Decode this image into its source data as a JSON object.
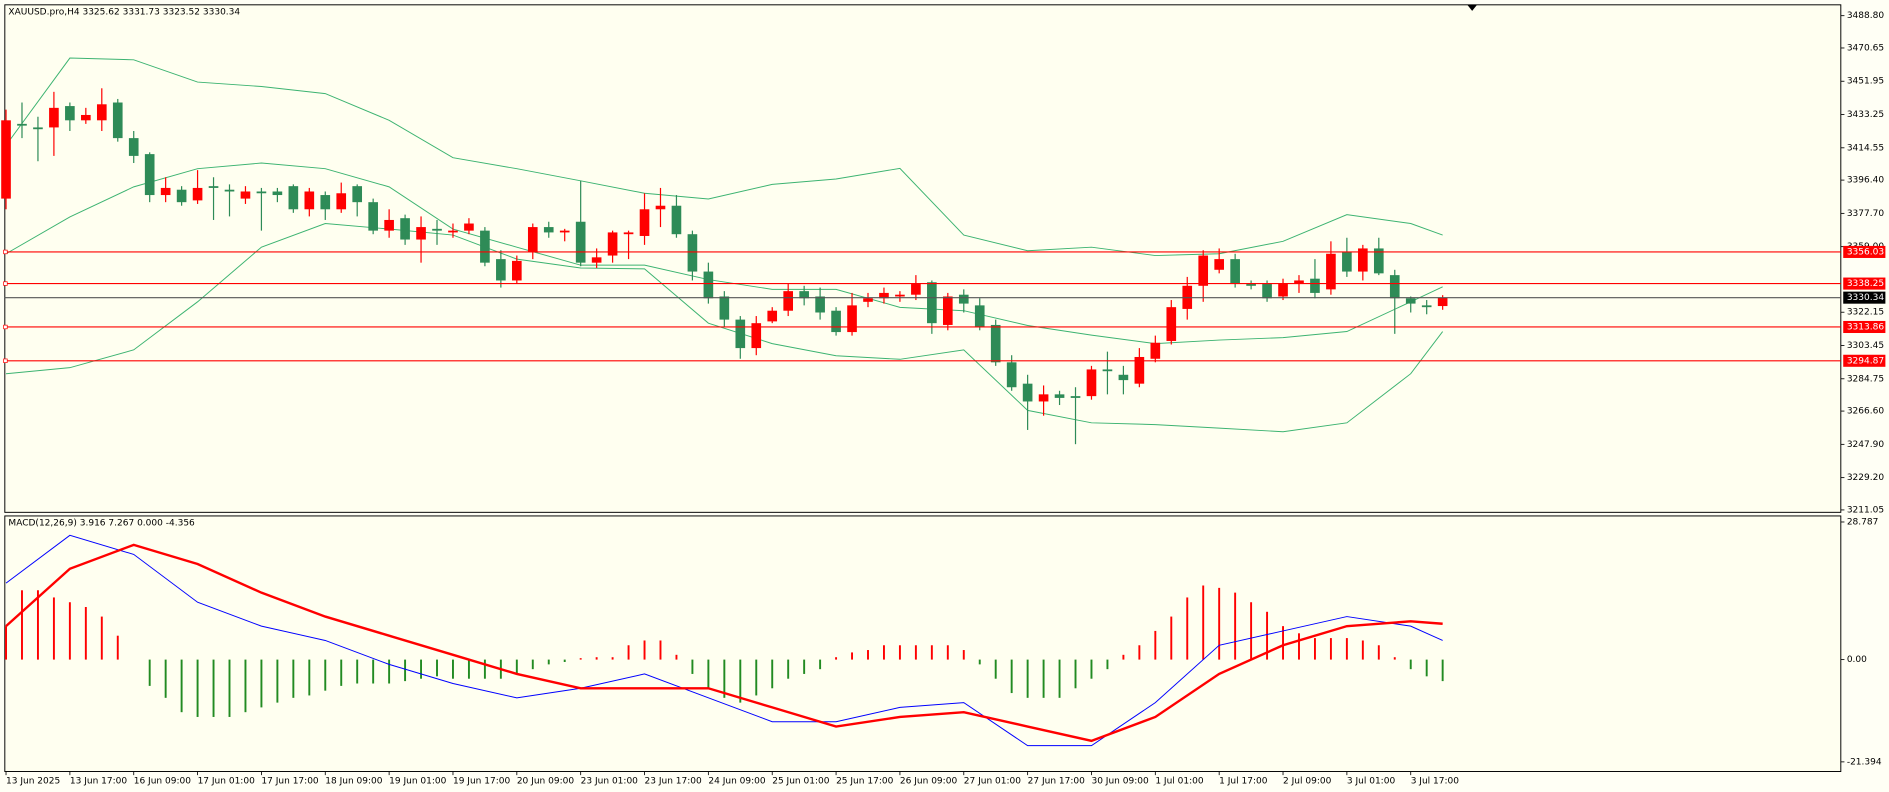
{
  "chart_data": [
    {
      "type": "candlestick",
      "title": "XAUUSD.pro,H4  3325.62 3331.73 3323.52 3330.34",
      "open": [
        3386,
        3428,
        3426,
        3426,
        3438,
        3430,
        3430,
        3440,
        3420,
        3411,
        3388,
        3391,
        3385,
        3393,
        3391,
        3386,
        3390,
        3390,
        3393,
        3380,
        3388,
        3380,
        3393,
        3384,
        3368,
        3375,
        3363,
        3369,
        3367,
        3368,
        3368,
        3352,
        3340,
        3356,
        3370,
        3367,
        3373,
        3350,
        3354,
        3366,
        3365,
        3380,
        3382,
        3366,
        3345,
        3331,
        3318,
        3302,
        3317,
        3323,
        3334,
        3331,
        3323,
        3311,
        3328,
        3330,
        3331,
        3332,
        3339,
        3315,
        3332,
        3326,
        3315,
        3294,
        3282,
        3272,
        3276,
        3275,
        3275,
        3290,
        3287,
        3282,
        3296,
        3306,
        3324,
        3337,
        3346,
        3352,
        3338,
        3338,
        3331,
        3338,
        3341,
        3335,
        3356,
        3345,
        3358,
        3343,
        3330,
        3326,
        3325.62
      ],
      "high": [
        3436,
        3440,
        3432,
        3446,
        3440,
        3437,
        3448,
        3442,
        3424,
        3412,
        3398,
        3393,
        3402,
        3398,
        3394,
        3393,
        3392,
        3392,
        3394,
        3392,
        3390,
        3395,
        3394,
        3386,
        3380,
        3377,
        3376,
        3374,
        3372,
        3375,
        3370,
        3357,
        3354,
        3372,
        3373,
        3369,
        3396,
        3358,
        3368,
        3368,
        3389,
        3392,
        3388,
        3368,
        3350,
        3334,
        3320,
        3320,
        3325,
        3338,
        3337,
        3336,
        3325,
        3333,
        3333,
        3336,
        3334,
        3343,
        3340,
        3333,
        3335,
        3330,
        3318,
        3298,
        3287,
        3281,
        3278,
        3280,
        3292,
        3300,
        3292,
        3302,
        3309,
        3329,
        3342,
        3357,
        3358,
        3355,
        3340,
        3340,
        3341,
        3343,
        3352,
        3362,
        3364,
        3360,
        3364,
        3346,
        3331,
        3329,
        3331.73
      ],
      "low": [
        3380,
        3420,
        3407,
        3410,
        3424,
        3428,
        3424,
        3418,
        3406,
        3384,
        3384,
        3382,
        3383,
        3374,
        3376,
        3383,
        3368,
        3384,
        3378,
        3376,
        3374,
        3378,
        3376,
        3366,
        3364,
        3360,
        3350,
        3360,
        3364,
        3366,
        3348,
        3336,
        3338,
        3352,
        3364,
        3362,
        3348,
        3347,
        3350,
        3352,
        3360,
        3370,
        3364,
        3340,
        3327,
        3314,
        3296,
        3298,
        3316,
        3320,
        3326,
        3318,
        3309,
        3309,
        3325,
        3327,
        3328,
        3329,
        3310,
        3312,
        3322,
        3312,
        3292,
        3278,
        3256,
        3264,
        3270,
        3248,
        3273,
        3276,
        3276,
        3280,
        3294,
        3304,
        3318,
        3328,
        3344,
        3336,
        3335,
        3328,
        3329,
        3333,
        3330,
        3332,
        3342,
        3340,
        3343,
        3310,
        3322,
        3321,
        3323.52
      ],
      "close": [
        3430,
        3427,
        3425,
        3437,
        3430,
        3433,
        3439,
        3420,
        3410,
        3388,
        3392,
        3384,
        3392,
        3392,
        3390,
        3390,
        3389,
        3388,
        3380,
        3390,
        3380,
        3389,
        3384,
        3368,
        3374,
        3363,
        3370,
        3368,
        3368,
        3372,
        3350,
        3340,
        3351,
        3370,
        3367,
        3368,
        3350,
        3353,
        3367,
        3367,
        3380,
        3382,
        3366,
        3345,
        3330,
        3318,
        3302,
        3316,
        3323,
        3334,
        3330,
        3322,
        3311,
        3326,
        3330,
        3333,
        3332,
        3338,
        3316,
        3331,
        3327,
        3314,
        3294,
        3280,
        3272,
        3276,
        3274,
        3274,
        3290,
        3289,
        3284,
        3297,
        3305,
        3325,
        3337,
        3354,
        3352,
        3338,
        3337,
        3330,
        3338,
        3340,
        3333,
        3355,
        3345,
        3358,
        3344,
        3330,
        3327,
        3325,
        3330.34
      ],
      "up_color": "#ff0000",
      "down_color": "#2e8b57",
      "bands": {
        "x": [
          0,
          4,
          8,
          12,
          16,
          20,
          24,
          28,
          32,
          36,
          40,
          44,
          48,
          52,
          56,
          60,
          64,
          68,
          72,
          76,
          80,
          84,
          88,
          90
        ],
        "color": "#3cb371",
        "upper": [
          3416,
          3465,
          3464,
          3451.5,
          3449,
          3445,
          3430,
          3409,
          3402.8,
          3396,
          3389,
          3385.8,
          3394,
          3397,
          3403,
          3365.5,
          3356.7,
          3358.7,
          3354,
          3355,
          3362,
          3377,
          3372,
          3365.5
        ],
        "middle": [
          3355,
          3375.7,
          3392.6,
          3402.8,
          3406,
          3402.8,
          3392.6,
          3368.9,
          3358.7,
          3348.6,
          3348.6,
          3340.5,
          3335,
          3335,
          3324.9,
          3323,
          3314.7,
          3309.3,
          3304.5,
          3306.5,
          3307.9,
          3311.3,
          3328,
          3336.4
        ],
        "lower": [
          3287.6,
          3291,
          3301,
          3328,
          3358.7,
          3372,
          3368.9,
          3365.5,
          3352,
          3347,
          3346.5,
          3316,
          3304.5,
          3297.7,
          3295.7,
          3301,
          3267,
          3260,
          3259,
          3257,
          3255,
          3260,
          3287.6,
          3311.3
        ]
      },
      "levels": [
        3356.03,
        3338.25,
        3313.86,
        3294.87
      ],
      "level_color": "#ff0000",
      "current_price": 3330.34,
      "ylim": [
        3209.7,
        3494.9
      ],
      "yticks": [
        {
          "value": 3488.8,
          "label": "3488.80"
        },
        3470.65,
        3451.95,
        3433.25,
        3414.55,
        {
          "value": 3396.4,
          "label": "3396.40"
        },
        {
          "value": 3377.7,
          "label": "3377.70"
        },
        {
          "value": 3359,
          "label": "3359.00"
        },
        3322.15,
        3303.45,
        3284.75,
        {
          "value": 3266.6,
          "label": "3266.60"
        },
        {
          "value": 3247.9,
          "label": "3247.90"
        },
        {
          "value": 3229.2,
          "label": "3229.20"
        },
        3211.05
      ]
    },
    {
      "type": "macd",
      "title": "MACD(12,26,9) 3.916 7.267 0.000 -4.356",
      "histogram": [
        7,
        14.5,
        14.5,
        13,
        12,
        11,
        9,
        5,
        0,
        -5.5,
        -8,
        -11,
        -12,
        -12,
        -12,
        -11,
        -10,
        -9,
        -8,
        -7.5,
        -6.5,
        -5.5,
        -5,
        -5,
        -5,
        -4.5,
        -4,
        -3.5,
        -4,
        -4,
        -4,
        -4,
        -3,
        -2,
        -1,
        -0.5,
        0.3,
        0.5,
        0.5,
        3,
        4,
        4,
        1,
        -3,
        -6,
        -8,
        -9,
        -7.5,
        -6,
        -4,
        -3,
        -2,
        0.5,
        1.5,
        2,
        3,
        3,
        3,
        3,
        3,
        2,
        -1,
        -4,
        -7,
        -8,
        -8,
        -8,
        -6,
        -4,
        -2,
        1,
        3,
        6,
        9,
        13,
        15.5,
        15,
        14,
        12,
        10,
        7,
        5.5,
        4.5,
        4.5,
        4.5,
        4,
        3,
        0.5,
        -2,
        -3.5,
        -4.5
      ],
      "positive_color": "#ff0000",
      "negative_color": "#228b22",
      "x": [
        0,
        4,
        8,
        12,
        16,
        20,
        24,
        28,
        32,
        36,
        40,
        44,
        48,
        52,
        56,
        60,
        64,
        68,
        72,
        76,
        80,
        84,
        88,
        90
      ],
      "main_line": {
        "color": "#0000ff",
        "values": [
          16,
          26,
          22,
          12,
          7,
          4,
          -1,
          -5,
          -8,
          -6,
          -3,
          -8,
          -13,
          -13,
          -10,
          -9,
          -18,
          -18,
          -9,
          3,
          6,
          9,
          7,
          4
        ]
      },
      "signal_line": {
        "color": "#ff0000",
        "values": [
          7,
          19,
          24,
          20,
          14,
          9,
          5,
          1,
          -3,
          -6,
          -6,
          -6,
          -10,
          -14,
          -12,
          -11,
          -14,
          -17,
          -12,
          -3,
          3,
          7,
          8,
          7.5
        ]
      },
      "ylim": [
        -23.41,
        30.05
      ],
      "yticks": [
        28.787,
        {
          "value": 0,
          "label": "0.00"
        },
        -21.394
      ],
      "x_tick_labels": [
        "13 Jun 2025",
        "13 Jun 17:00",
        "16 Jun 09:00",
        "17 Jun 01:00",
        "17 Jun 17:00",
        "18 Jun 09:00",
        "19 Jun 01:00",
        "19 Jun 17:00",
        "20 Jun 09:00",
        "23 Jun 01:00",
        "23 Jun 17:00",
        "24 Jun 09:00",
        "25 Jun 01:00",
        "25 Jun 17:00",
        "26 Jun 09:00",
        "27 Jun 01:00",
        "27 Jun 17:00",
        "30 Jun 09:00",
        "1 Jul 01:00",
        "1 Jul 17:00",
        "2 Jul 09:00",
        "3 Jul 01:00",
        "3 Jul 17:00"
      ]
    }
  ]
}
